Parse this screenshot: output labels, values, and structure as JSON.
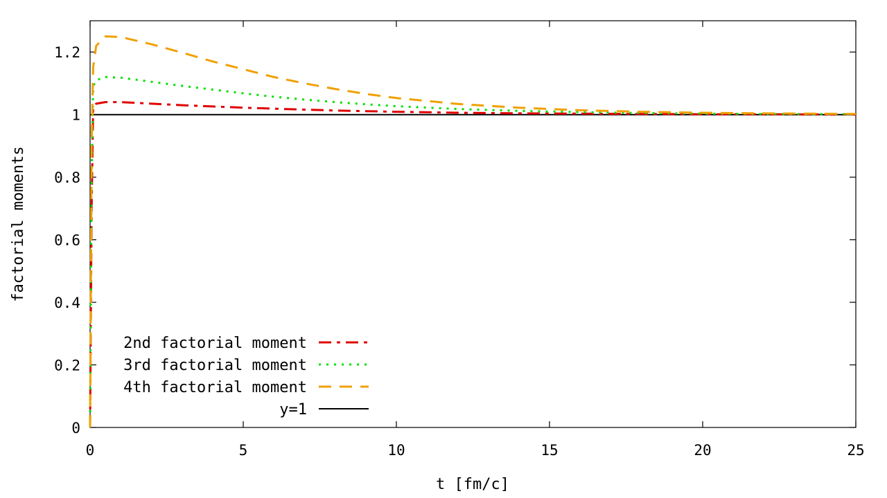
{
  "chart_data": {
    "type": "line",
    "title": "",
    "xlabel": "t [fm/c]",
    "ylabel": "factorial moments",
    "xlim": [
      0,
      25
    ],
    "ylim": [
      0,
      1.3
    ],
    "xticks": [
      0,
      5,
      10,
      15,
      20,
      25
    ],
    "yticks": [
      0,
      0.2,
      0.4,
      0.6,
      0.8,
      1,
      1.2
    ],
    "xtick_labels": [
      "0",
      "5",
      "10",
      "15",
      "20",
      "25"
    ],
    "ytick_labels": [
      "0",
      "0.2",
      "0.4",
      "0.6",
      "0.8",
      "1",
      "1.2"
    ],
    "grid": false,
    "legend_position": "bottom-left",
    "series": [
      {
        "name": "2nd factorial moment",
        "color": "#e00000",
        "dash": "dash-dot",
        "x": [
          0.0,
          0.05,
          0.1,
          0.2,
          0.5,
          1,
          2,
          3,
          4,
          5,
          6,
          7,
          8,
          9,
          10,
          12,
          14,
          16,
          18,
          20,
          22,
          25
        ],
        "y": [
          0.0,
          0.7,
          1.02,
          1.035,
          1.04,
          1.04,
          1.035,
          1.03,
          1.026,
          1.022,
          1.019,
          1.016,
          1.013,
          1.011,
          1.009,
          1.006,
          1.004,
          1.003,
          1.002,
          1.001,
          1.001,
          1.0
        ]
      },
      {
        "name": "3rd factorial moment",
        "color": "#00e000",
        "dash": "dotted",
        "x": [
          0.0,
          0.05,
          0.1,
          0.2,
          0.5,
          1,
          2,
          3,
          4,
          5,
          6,
          7,
          8,
          9,
          10,
          12,
          14,
          16,
          18,
          20,
          22,
          25
        ],
        "y": [
          0.0,
          0.8,
          1.09,
          1.11,
          1.12,
          1.118,
          1.105,
          1.092,
          1.08,
          1.068,
          1.057,
          1.048,
          1.04,
          1.033,
          1.027,
          1.018,
          1.012,
          1.008,
          1.005,
          1.003,
          1.002,
          1.001
        ]
      },
      {
        "name": "4th factorial moment",
        "color": "#f0a000",
        "dash": "dashed",
        "x": [
          0.0,
          0.05,
          0.1,
          0.2,
          0.5,
          1,
          2,
          3,
          4,
          5,
          6,
          7,
          8,
          9,
          10,
          12,
          14,
          16,
          18,
          20,
          22,
          25
        ],
        "y": [
          0.0,
          0.9,
          1.15,
          1.22,
          1.25,
          1.248,
          1.225,
          1.198,
          1.17,
          1.145,
          1.12,
          1.1,
          1.082,
          1.066,
          1.053,
          1.034,
          1.022,
          1.014,
          1.009,
          1.006,
          1.004,
          1.002
        ]
      },
      {
        "name": "y=1",
        "color": "#000000",
        "dash": "solid",
        "x": [
          0,
          25
        ],
        "y": [
          1,
          1
        ]
      }
    ]
  }
}
